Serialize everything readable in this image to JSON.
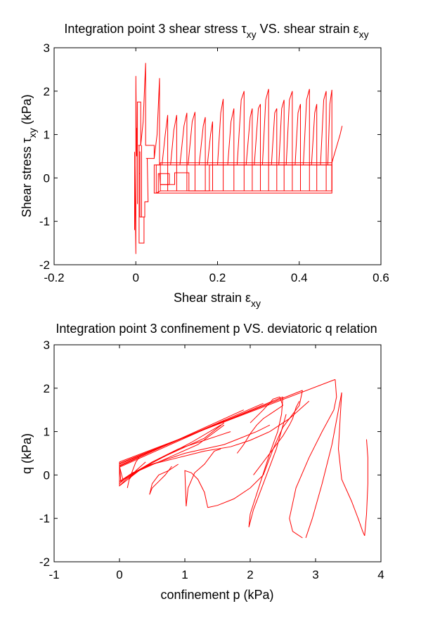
{
  "chart_data": [
    {
      "type": "line",
      "title_main": "Integration point 3 shear stress ",
      "title_sym1": "τ",
      "title_sub1": "xy",
      "title_mid": " VS. shear strain ",
      "title_sym2": "ε",
      "title_sub2": "xy",
      "xlabel_main": "Shear strain ",
      "xlabel_sym": "ε",
      "xlabel_sub": "xy",
      "ylabel_main": "Shear stress ",
      "ylabel_sym": "τ",
      "ylabel_sub": "xy",
      "ylabel_unit": " (kPa)",
      "xlim": [
        -0.2,
        0.6
      ],
      "ylim": [
        -2,
        3
      ],
      "xticks": [
        -0.2,
        0,
        0.2,
        0.4,
        0.6
      ],
      "xtick_labels": [
        "-0.2",
        "0",
        "0.2",
        "0.4",
        "0.6"
      ],
      "yticks": [
        -2,
        -1,
        0,
        1,
        2,
        3
      ],
      "ytick_labels": [
        "-2",
        "-1",
        "0",
        "1",
        "2",
        "3"
      ],
      "grid": false,
      "color": "#ff0000",
      "series": [
        {
          "x": [
            -0.003,
            -0.003,
            -0.003,
            0.0,
            0.0,
            0.002,
            0.002
          ],
          "y": [
            0.6,
            -1.2,
            0.3,
            -1.75,
            2.35,
            0.5,
            1.15
          ]
        },
        {
          "x": [
            0.004,
            0.004,
            0.012,
            0.012,
            0.006,
            0.008,
            0.008,
            0.016,
            0.02,
            0.02,
            0.01,
            0.01,
            0.008,
            0.008,
            0.01,
            0.01
          ],
          "y": [
            -0.6,
            1.75,
            1.75,
            0.75,
            0.75,
            0.75,
            -1.5,
            -1.5,
            -1.5,
            -0.9,
            -0.9,
            0.1,
            0.1,
            0.6,
            0.6,
            -0.6
          ]
        },
        {
          "x": [
            0.012,
            0.018,
            0.022,
            0.024,
            0.024,
            0.045,
            0.045,
            0.025,
            0.028,
            0.03,
            0.03,
            0.028,
            0.022,
            0.022,
            0.014,
            0.014
          ],
          "y": [
            0.75,
            1.3,
            2.2,
            2.65,
            0.75,
            0.75,
            0.45,
            0.45,
            0.45,
            -0.55,
            -0.55,
            -0.55,
            -0.55,
            -0.9,
            -0.9,
            0.75
          ]
        },
        {
          "x": [
            0.045,
            0.052,
            0.058,
            0.058,
            0.058,
            0.045,
            0.045,
            0.045,
            0.05,
            0.055,
            0.055,
            0.082,
            0.082,
            0.06
          ],
          "y": [
            0.45,
            1.0,
            2.3,
            0.3,
            0.3,
            0.3,
            -0.35,
            -0.35,
            -0.35,
            -0.35,
            0.1,
            0.1,
            -0.15,
            -0.15
          ]
        },
        {
          "x": [
            0.058,
            0.06,
            0.095,
            0.095,
            0.13,
            0.13,
            0.18,
            0.18,
            0.18,
            0.48
          ],
          "y": [
            0.1,
            -0.15,
            -0.15,
            0.12,
            0.12,
            -0.3,
            -0.3,
            0.1,
            0.3,
            0.3
          ]
        },
        {
          "x": [
            0.05,
            0.05,
            0.48,
            0.48,
            0.05
          ],
          "y": [
            0.3,
            -0.35,
            -0.35,
            0.3,
            0.3
          ]
        },
        {
          "x": [
            0.05,
            0.06,
            0.48,
            0.48,
            0.06,
            0.06
          ],
          "y": [
            -0.35,
            -0.3,
            -0.3,
            0.35,
            0.35,
            -0.3
          ]
        },
        {
          "x": [
            0.48,
            0.5,
            0.505
          ],
          "y": [
            0.35,
            1.0,
            1.2
          ]
        },
        {
          "x": [
            0.064,
            0.072,
            0.078,
            0.078
          ],
          "y": [
            0.3,
            1.0,
            1.45,
            -0.3
          ]
        },
        {
          "x": [
            0.085,
            0.093,
            0.1,
            0.1
          ],
          "y": [
            0.3,
            1.1,
            1.45,
            -0.3
          ]
        },
        {
          "x": [
            0.108,
            0.118,
            0.125,
            0.125
          ],
          "y": [
            0.3,
            1.2,
            1.5,
            -0.3
          ]
        },
        {
          "x": [
            0.128,
            0.138,
            0.145,
            0.145
          ],
          "y": [
            0.3,
            1.3,
            1.52,
            -0.3
          ]
        },
        {
          "x": [
            0.155,
            0.165,
            0.17,
            0.17
          ],
          "y": [
            0.3,
            1.2,
            1.4,
            -0.3
          ]
        },
        {
          "x": [
            0.175,
            0.183,
            0.188,
            0.188
          ],
          "y": [
            0.3,
            1.0,
            1.3,
            -0.3
          ]
        },
        {
          "x": [
            0.2,
            0.208,
            0.214,
            0.214
          ],
          "y": [
            0.3,
            1.5,
            1.82,
            -0.3
          ]
        },
        {
          "x": [
            0.225,
            0.233,
            0.24,
            0.24
          ],
          "y": [
            0.3,
            1.3,
            1.6,
            -0.3
          ]
        },
        {
          "x": [
            0.248,
            0.258,
            0.265,
            0.265
          ],
          "y": [
            0.3,
            1.8,
            2.0,
            -0.3
          ]
        },
        {
          "x": [
            0.27,
            0.28,
            0.285,
            0.285
          ],
          "y": [
            0.3,
            1.4,
            1.6,
            -0.3
          ]
        },
        {
          "x": [
            0.29,
            0.3,
            0.305,
            0.305
          ],
          "y": [
            0.3,
            1.6,
            1.7,
            -0.3
          ]
        },
        {
          "x": [
            0.31,
            0.318,
            0.325,
            0.325
          ],
          "y": [
            0.3,
            1.8,
            2.05,
            -0.3
          ]
        },
        {
          "x": [
            0.332,
            0.34,
            0.345,
            0.345
          ],
          "y": [
            0.3,
            1.5,
            1.6,
            -0.3
          ]
        },
        {
          "x": [
            0.35,
            0.357,
            0.363,
            0.363
          ],
          "y": [
            0.3,
            1.6,
            1.8,
            -0.3
          ]
        },
        {
          "x": [
            0.368,
            0.376,
            0.383,
            0.383
          ],
          "y": [
            0.3,
            1.8,
            2.0,
            -0.3
          ]
        },
        {
          "x": [
            0.39,
            0.397,
            0.403,
            0.403
          ],
          "y": [
            0.3,
            1.5,
            1.7,
            -0.3
          ]
        },
        {
          "x": [
            0.41,
            0.418,
            0.425,
            0.425
          ],
          "y": [
            0.3,
            1.8,
            2.05,
            -0.3
          ]
        },
        {
          "x": [
            0.43,
            0.438,
            0.443,
            0.443
          ],
          "y": [
            0.3,
            1.5,
            1.7,
            -0.3
          ]
        },
        {
          "x": [
            0.452,
            0.46,
            0.466,
            0.466
          ],
          "y": [
            0.3,
            1.8,
            2.0,
            -0.3
          ]
        },
        {
          "x": [
            0.47,
            0.475,
            0.48,
            0.48
          ],
          "y": [
            0.3,
            1.7,
            2.03,
            -0.3
          ]
        }
      ]
    },
    {
      "type": "line",
      "title": "Integration point 3 confinement p VS. deviatoric q relation",
      "xlabel": "confinement p (kPa)",
      "ylabel": "q (kPa)",
      "xlim": [
        -1,
        4
      ],
      "ylim": [
        -2,
        3
      ],
      "xticks": [
        -1,
        0,
        1,
        2,
        3,
        4
      ],
      "xtick_labels": [
        "-1",
        "0",
        "1",
        "2",
        "3",
        "4"
      ],
      "yticks": [
        -2,
        -1,
        0,
        1,
        2,
        3
      ],
      "ytick_labels": [
        "-2",
        "-1",
        "0",
        "1",
        "2",
        "3"
      ],
      "grid": false,
      "color": "#ff0000",
      "series": [
        {
          "x": [
            0.0,
            0.0,
            0.3,
            1.2,
            1.6
          ],
          "y": [
            0.3,
            -0.25,
            0.1,
            0.7,
            1.15
          ]
        },
        {
          "x": [
            0.0,
            0.02,
            0.4,
            1.1,
            1.55
          ],
          "y": [
            0.25,
            -0.15,
            0.2,
            0.75,
            1.15
          ]
        },
        {
          "x": [
            0.0,
            0.05,
            0.5,
            1.3,
            1.6
          ],
          "y": [
            0.2,
            -0.1,
            0.3,
            0.85,
            1.2
          ]
        },
        {
          "x": [
            0.0,
            3.3
          ],
          "y": [
            0.3,
            2.2
          ]
        },
        {
          "x": [
            0.0,
            2.8
          ],
          "y": [
            0.27,
            1.95
          ]
        },
        {
          "x": [
            0.0,
            2.5
          ],
          "y": [
            0.25,
            1.8
          ]
        },
        {
          "x": [
            0.0,
            2.2
          ],
          "y": [
            0.22,
            1.65
          ]
        },
        {
          "x": [
            0.0,
            1.9
          ],
          "y": [
            0.2,
            1.5
          ]
        },
        {
          "x": [
            0.0,
            1.6
          ],
          "y": [
            0.18,
            1.25
          ]
        },
        {
          "x": [
            0.0,
            0.1,
            0.3,
            0.5,
            0.7,
            0.9,
            1.1,
            1.3,
            1.5,
            1.7
          ],
          "y": [
            -0.25,
            -0.1,
            0.1,
            0.3,
            0.45,
            0.6,
            0.7,
            0.8,
            0.9,
            1.0
          ]
        },
        {
          "x": [
            0.0,
            0.15,
            0.4,
            0.7,
            1.0,
            1.3,
            1.6,
            1.85,
            2.1,
            2.3
          ],
          "y": [
            -0.2,
            0.0,
            0.2,
            0.35,
            0.5,
            0.6,
            0.7,
            0.85,
            1.0,
            1.15
          ]
        },
        {
          "x": [
            0.0,
            0.2,
            0.5,
            0.9,
            1.3,
            1.7,
            2.0,
            2.3,
            2.6,
            2.9
          ],
          "y": [
            -0.15,
            0.05,
            0.25,
            0.4,
            0.55,
            0.65,
            0.8,
            1.0,
            1.3,
            1.7
          ]
        },
        {
          "x": [
            3.3,
            3.32,
            3.28,
            3.1,
            2.9,
            2.7,
            2.6,
            2.65,
            2.8
          ],
          "y": [
            2.2,
            1.8,
            1.5,
            1.0,
            0.4,
            -0.3,
            -1.0,
            -1.3,
            -1.45
          ]
        },
        {
          "x": [
            2.8,
            2.75,
            2.65,
            2.5,
            2.35,
            2.2
          ],
          "y": [
            1.95,
            1.6,
            1.4,
            1.1,
            0.6,
            0.0
          ]
        },
        {
          "x": [
            2.5,
            2.48,
            2.42,
            2.3,
            2.15,
            2.0,
            1.98
          ],
          "y": [
            1.8,
            1.4,
            1.0,
            0.5,
            -0.2,
            -0.9,
            -1.2
          ]
        },
        {
          "x": [
            1.98,
            2.05,
            2.2,
            2.4,
            2.55
          ],
          "y": [
            -1.2,
            -0.8,
            -0.2,
            0.6,
            1.4
          ]
        },
        {
          "x": [
            2.85,
            2.95,
            3.1,
            3.25,
            3.4
          ],
          "y": [
            -1.45,
            -1.0,
            -0.2,
            0.7,
            1.9
          ]
        },
        {
          "x": [
            3.4,
            3.38,
            3.35,
            3.4,
            3.55,
            3.65,
            3.72,
            3.75
          ],
          "y": [
            1.9,
            1.4,
            0.6,
            -0.1,
            -0.6,
            -1.0,
            -1.3,
            -1.4
          ]
        },
        {
          "x": [
            3.75,
            3.78,
            3.8,
            3.8,
            3.78
          ],
          "y": [
            -1.4,
            -0.9,
            -0.2,
            0.4,
            0.82
          ]
        },
        {
          "x": [
            2.2,
            2.0,
            1.75,
            1.5,
            1.35
          ],
          "y": [
            0.0,
            -0.3,
            -0.55,
            -0.7,
            -0.75
          ]
        },
        {
          "x": [
            1.35,
            1.3,
            1.2,
            1.1,
            1.0,
            1.02
          ],
          "y": [
            -0.75,
            -0.4,
            -0.1,
            0.05,
            0.1,
            -0.72
          ]
        },
        {
          "x": [
            1.02,
            1.05,
            1.15,
            1.3,
            1.45,
            1.55
          ],
          "y": [
            -0.72,
            -0.3,
            0.05,
            0.25,
            0.55,
            0.6
          ]
        },
        {
          "x": [
            0.8,
            0.7,
            0.6,
            0.5,
            0.46
          ],
          "y": [
            0.2,
            0.0,
            -0.15,
            -0.3,
            -0.45
          ]
        },
        {
          "x": [
            0.46,
            0.5,
            0.6,
            0.75,
            0.9
          ],
          "y": [
            -0.45,
            -0.2,
            0.0,
            0.1,
            0.25
          ]
        },
        {
          "x": [
            0.3,
            0.25,
            0.2,
            0.15,
            0.12,
            0.15,
            0.25,
            0.4
          ],
          "y": [
            0.4,
            0.3,
            0.1,
            -0.1,
            -0.3,
            -0.1,
            0.1,
            0.3
          ]
        },
        {
          "x": [
            2.05,
            2.2,
            2.35,
            2.5,
            2.6,
            2.65,
            2.7,
            2.75
          ],
          "y": [
            0.0,
            0.3,
            0.6,
            0.9,
            1.15,
            1.3,
            1.55,
            1.7
          ]
        },
        {
          "x": [
            1.8,
            1.9,
            2.0,
            2.1,
            2.2,
            2.3,
            2.4,
            2.5
          ],
          "y": [
            0.5,
            0.7,
            0.95,
            1.15,
            1.3,
            1.4,
            1.5,
            1.6
          ]
        },
        {
          "x": [
            2.5,
            2.45,
            2.35,
            2.2,
            2.0
          ],
          "y": [
            1.6,
            1.8,
            1.75,
            1.5,
            1.2
          ]
        }
      ]
    }
  ]
}
